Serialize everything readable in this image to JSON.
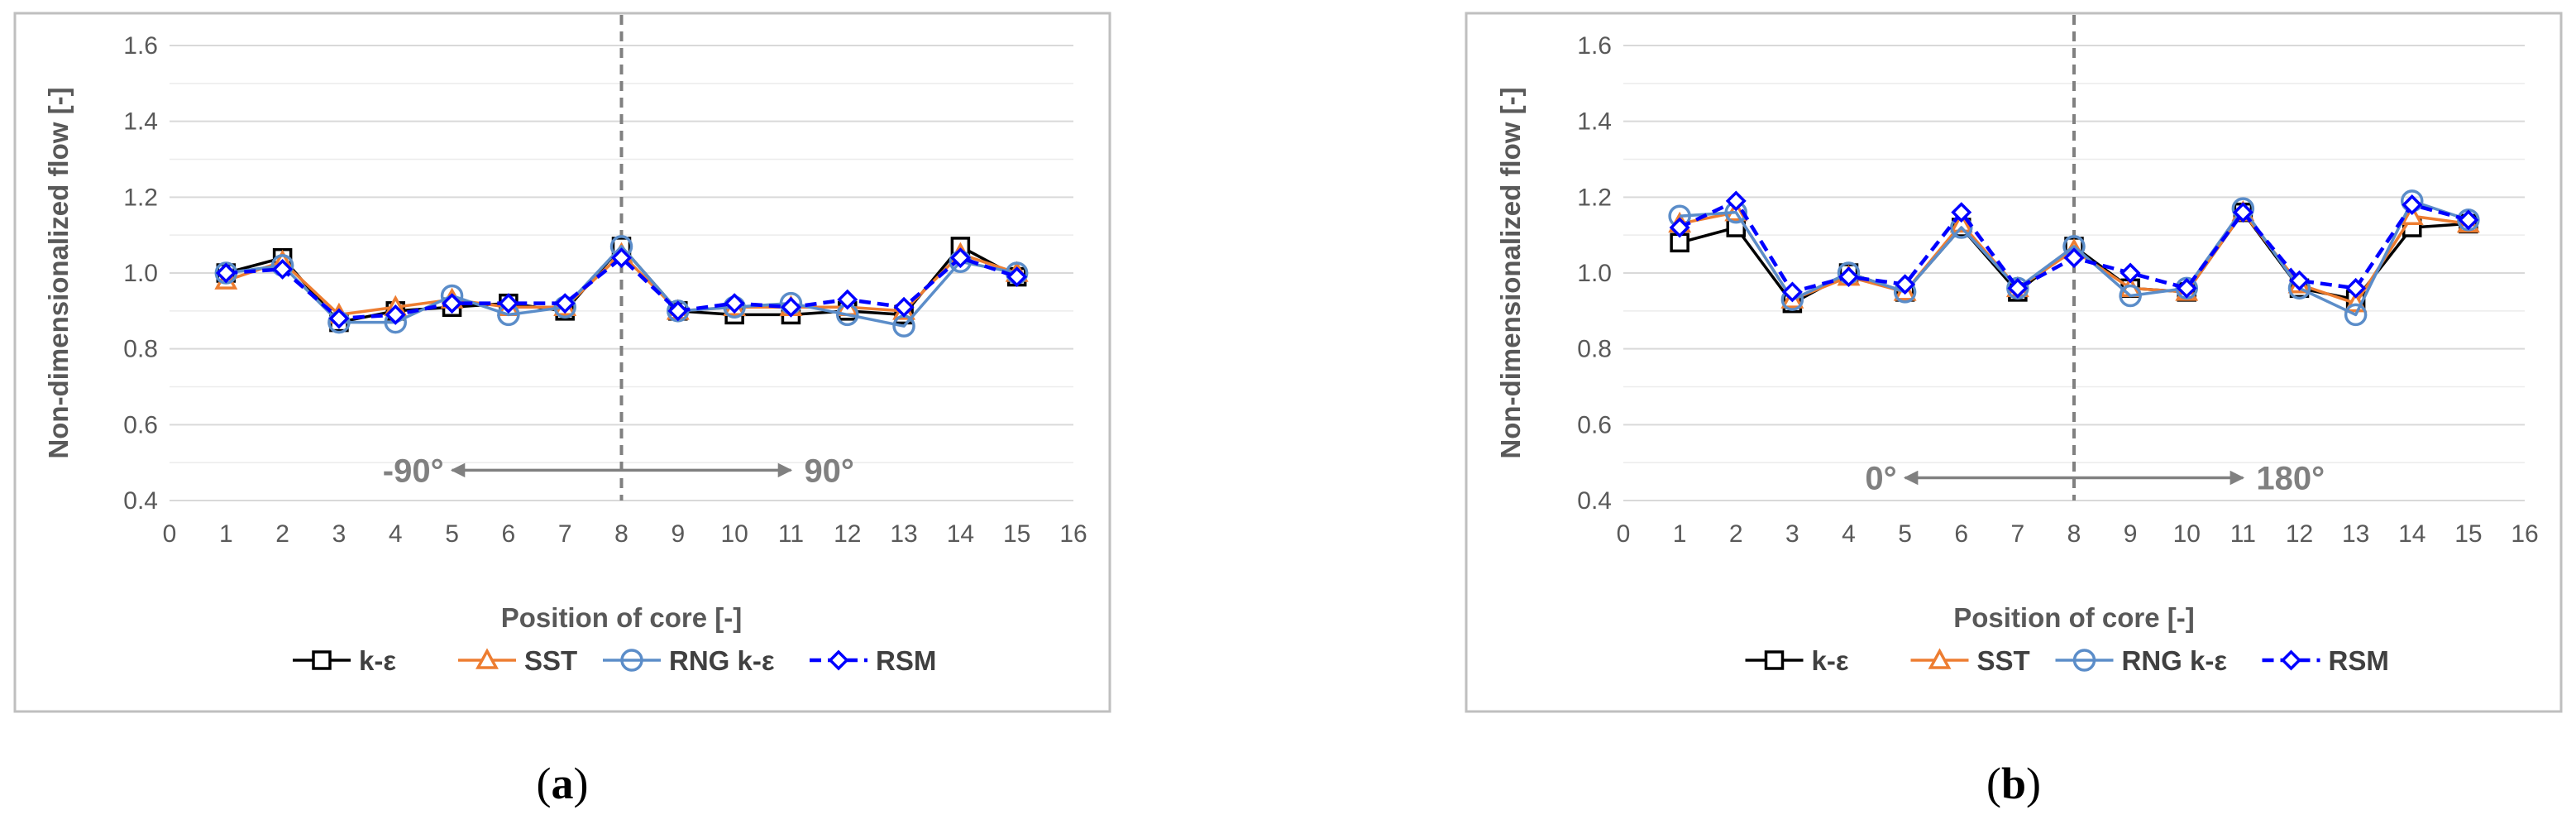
{
  "panels": [
    {
      "label_open": "(",
      "label_letter": "a",
      "label_close": ")",
      "range_left": "-90°",
      "range_right": "90°"
    },
    {
      "label_open": "(",
      "label_letter": "b",
      "label_close": ")",
      "range_left": "0°",
      "range_right": "180°"
    }
  ],
  "colors": {
    "k_eps": "#000000",
    "sst": "#ED7D31",
    "rng": "#5B8DC9",
    "rsm": "#0000FF",
    "grid": "#d9d9d9",
    "dashed_line": "#808080",
    "frame": "#bfbfbf"
  },
  "chart_data": [
    {
      "type": "line",
      "xlabel": "Position of core [-]",
      "ylabel": "Non-dimensionalized flow [-]",
      "xlim": [
        0,
        16
      ],
      "ylim": [
        0.4,
        1.6
      ],
      "xticks": [
        "0",
        "1",
        "2",
        "3",
        "4",
        "5",
        "6",
        "7",
        "8",
        "9",
        "10",
        "11",
        "12",
        "13",
        "14",
        "15",
        "16"
      ],
      "yticks": [
        "0.4",
        "0.6",
        "0.8",
        "1.0",
        "1.2",
        "1.4",
        "1.6"
      ],
      "grid": true,
      "legend_position": "bottom",
      "vertical_marker_x": 8,
      "range_arrow": {
        "from_x": 5,
        "to_x": 11,
        "y": 0.48
      },
      "x": [
        1,
        2,
        3,
        4,
        5,
        6,
        7,
        8,
        9,
        10,
        11,
        12,
        13,
        14,
        15
      ],
      "series": [
        {
          "name": "k-ε",
          "marker": "square",
          "values": [
            1.0,
            1.04,
            0.87,
            0.9,
            0.91,
            0.92,
            0.9,
            1.07,
            0.9,
            0.89,
            0.89,
            0.9,
            0.89,
            1.07,
            0.99
          ]
        },
        {
          "name": "SST",
          "marker": "triangle",
          "values": [
            0.98,
            1.03,
            0.89,
            0.91,
            0.93,
            0.91,
            0.91,
            1.05,
            0.9,
            0.91,
            0.91,
            0.91,
            0.9,
            1.05,
            1.0
          ]
        },
        {
          "name": "RNG k-ε",
          "marker": "circle",
          "values": [
            1.0,
            1.02,
            0.87,
            0.87,
            0.94,
            0.89,
            0.91,
            1.07,
            0.9,
            0.91,
            0.92,
            0.89,
            0.86,
            1.03,
            1.0
          ]
        },
        {
          "name": "RSM",
          "marker": "diamond",
          "values": [
            1.0,
            1.01,
            0.88,
            0.89,
            0.92,
            0.92,
            0.92,
            1.04,
            0.9,
            0.92,
            0.91,
            0.93,
            0.91,
            1.04,
            0.99
          ]
        }
      ]
    },
    {
      "type": "line",
      "xlabel": "Position of core [-]",
      "ylabel": "Non-dimensionalized flow [-]",
      "xlim": [
        0,
        16
      ],
      "ylim": [
        0.4,
        1.6
      ],
      "xticks": [
        "0",
        "1",
        "2",
        "3",
        "4",
        "5",
        "6",
        "7",
        "8",
        "9",
        "10",
        "11",
        "12",
        "13",
        "14",
        "15",
        "16"
      ],
      "yticks": [
        "0.4",
        "0.6",
        "0.8",
        "1.0",
        "1.2",
        "1.4",
        "1.6"
      ],
      "grid": true,
      "legend_position": "bottom",
      "vertical_marker_x": 8,
      "range_arrow": {
        "from_x": 5,
        "to_x": 11,
        "y": 0.46
      },
      "x": [
        1,
        2,
        3,
        4,
        5,
        6,
        7,
        8,
        9,
        10,
        11,
        12,
        13,
        14,
        15
      ],
      "series": [
        {
          "name": "k-ε",
          "marker": "square",
          "values": [
            1.08,
            1.12,
            0.92,
            1.0,
            0.95,
            1.12,
            0.95,
            1.07,
            0.96,
            0.95,
            1.16,
            0.96,
            0.93,
            1.12,
            1.13
          ]
        },
        {
          "name": "SST",
          "marker": "triangle",
          "values": [
            1.13,
            1.16,
            0.93,
            0.99,
            0.95,
            1.13,
            0.96,
            1.06,
            0.96,
            0.95,
            1.16,
            0.97,
            0.92,
            1.15,
            1.13
          ]
        },
        {
          "name": "RNG k-ε",
          "marker": "circle",
          "values": [
            1.15,
            1.16,
            0.93,
            1.0,
            0.95,
            1.12,
            0.96,
            1.07,
            0.94,
            0.96,
            1.17,
            0.96,
            0.89,
            1.19,
            1.14
          ]
        },
        {
          "name": "RSM",
          "marker": "diamond",
          "values": [
            1.12,
            1.19,
            0.95,
            0.99,
            0.97,
            1.16,
            0.96,
            1.04,
            1.0,
            0.96,
            1.16,
            0.98,
            0.96,
            1.18,
            1.14
          ]
        }
      ]
    }
  ]
}
